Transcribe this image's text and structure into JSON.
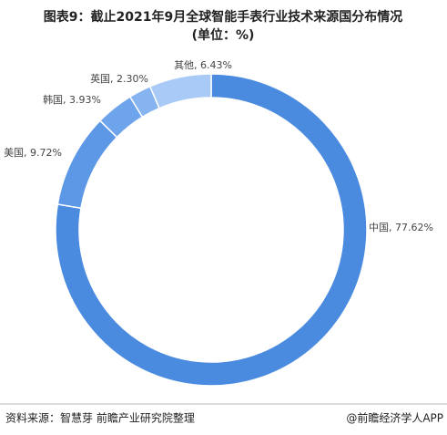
{
  "chart_data": {
    "type": "donut",
    "title": "图表9：截止2021年9月全球智能手表行业技术来源国分布情况",
    "subtitle": "(单位：%)",
    "values": [
      77.62,
      9.72,
      3.93,
      2.3,
      6.43
    ],
    "value_labels": [
      "中国, 77.62%",
      "美国, 9.72%",
      "韩国, 3.93%",
      "英国, 2.30%",
      "其他, 6.43%"
    ],
    "colors": [
      "#4a8be0",
      "#5c98e6",
      "#6ea4eb",
      "#86b4f0",
      "#a9caf6"
    ],
    "source": "资料来源：智慧芽 前瞻产业研究院整理",
    "credit": "@前瞻经济学人APP"
  }
}
